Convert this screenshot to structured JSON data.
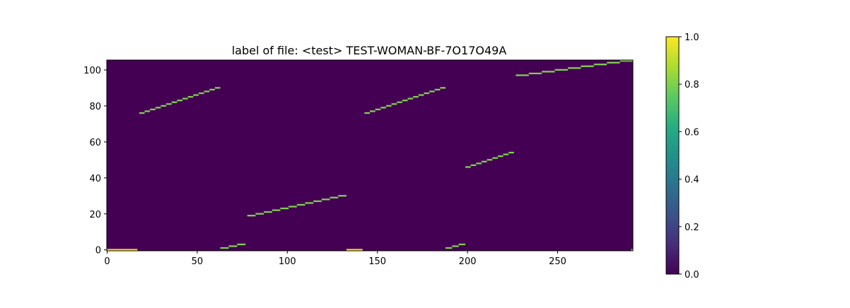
{
  "chart_data": [
    {
      "type": "heatmap",
      "title": "label of file: <test> TEST-WOMAN-BF-7O17O49A",
      "xlabel": "",
      "ylabel": "",
      "xlim": [
        0,
        292
      ],
      "ylim": [
        -0.5,
        105.5
      ],
      "x_ticks": [
        "0",
        "50",
        "100",
        "150",
        "200",
        "250"
      ],
      "y_ticks": [
        "0",
        "20",
        "40",
        "60",
        "80",
        "100"
      ],
      "grid": false,
      "colormap": "viridis",
      "background_value": 0.0,
      "segments": [
        {
          "x_start": 0,
          "x_end": 17,
          "y": 0,
          "value": 1.0
        },
        {
          "x_start": 18,
          "x_end": 63,
          "y_start": 76,
          "y_end": 90,
          "value": 0.8
        },
        {
          "x_start": 63,
          "x_end": 77,
          "y_start": 1,
          "y_end": 3,
          "value": 0.8
        },
        {
          "x_start": 78,
          "x_end": 133,
          "y_start": 19,
          "y_end": 30,
          "value": 0.8
        },
        {
          "x_start": 133,
          "x_end": 142,
          "y": 0,
          "value": 1.0
        },
        {
          "x_start": 143,
          "x_end": 188,
          "y_start": 76,
          "y_end": 90,
          "value": 0.8
        },
        {
          "x_start": 188,
          "x_end": 199,
          "y_start": 1,
          "y_end": 3,
          "value": 0.8
        },
        {
          "x_start": 199,
          "x_end": 226,
          "y_start": 46,
          "y_end": 54,
          "value": 0.8
        },
        {
          "x_start": 227,
          "x_end": 292,
          "y_start": 97,
          "y_end": 105,
          "value": 0.8
        },
        {
          "x_start": 291,
          "x_end": 292,
          "y": 0,
          "value": 0.8
        }
      ]
    },
    {
      "type": "colorbar",
      "colormap": "viridis",
      "range": [
        0.0,
        1.0
      ],
      "ticks": [
        "0.0",
        "0.2",
        "0.4",
        "0.6",
        "0.8",
        "1.0"
      ]
    }
  ],
  "colors": {
    "viridis_0": "#440154",
    "viridis_0.8": "#7ad151",
    "viridis_1": "#fde725"
  }
}
